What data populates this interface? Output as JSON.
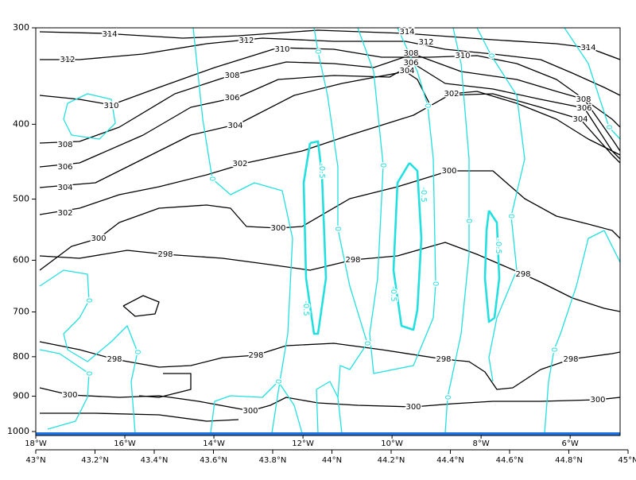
{
  "chart_data": {
    "type": "contour",
    "ylim": [
      300,
      1000
    ],
    "yticks": [
      300,
      400,
      500,
      600,
      700,
      800,
      900,
      1000
    ],
    "yscale": "log",
    "y_inverted": true,
    "xlim": [
      43,
      45
    ],
    "xticks": [
      {
        "value": 43,
        "label": "43°N"
      },
      {
        "value": 43.2,
        "label": "43.2°N"
      },
      {
        "value": 43.4,
        "label": "43.4°N"
      },
      {
        "value": 43.6,
        "label": "43.6°N"
      },
      {
        "value": 43.8,
        "label": "43.8°N"
      },
      {
        "value": 44,
        "label": "44°N"
      },
      {
        "value": 44.2,
        "label": "44.2°N"
      },
      {
        "value": 44.4,
        "label": "44.4°N"
      },
      {
        "value": 44.6,
        "label": "44.6°N"
      },
      {
        "value": 44.8,
        "label": "44.8°N"
      },
      {
        "value": 45,
        "label": "45°N"
      }
    ],
    "x2lim": [
      -18,
      -4.7
    ],
    "x2ticks": [
      {
        "value": -18,
        "label": "18°W"
      },
      {
        "value": -16,
        "label": "16°W"
      },
      {
        "value": -14,
        "label": "14°W"
      },
      {
        "value": -12,
        "label": "12°W"
      },
      {
        "value": -10,
        "label": "10°W"
      },
      {
        "value": -8,
        "label": "8°W"
      },
      {
        "value": -6,
        "label": "6°W"
      }
    ],
    "theta_levels": [
      298,
      300,
      302,
      304,
      306,
      308,
      310,
      312,
      314
    ],
    "theta_color": "#000000",
    "w_levels": [
      -0.5,
      0
    ],
    "w_color": "#22e0e0",
    "surface_color": "#1e6fe0"
  }
}
